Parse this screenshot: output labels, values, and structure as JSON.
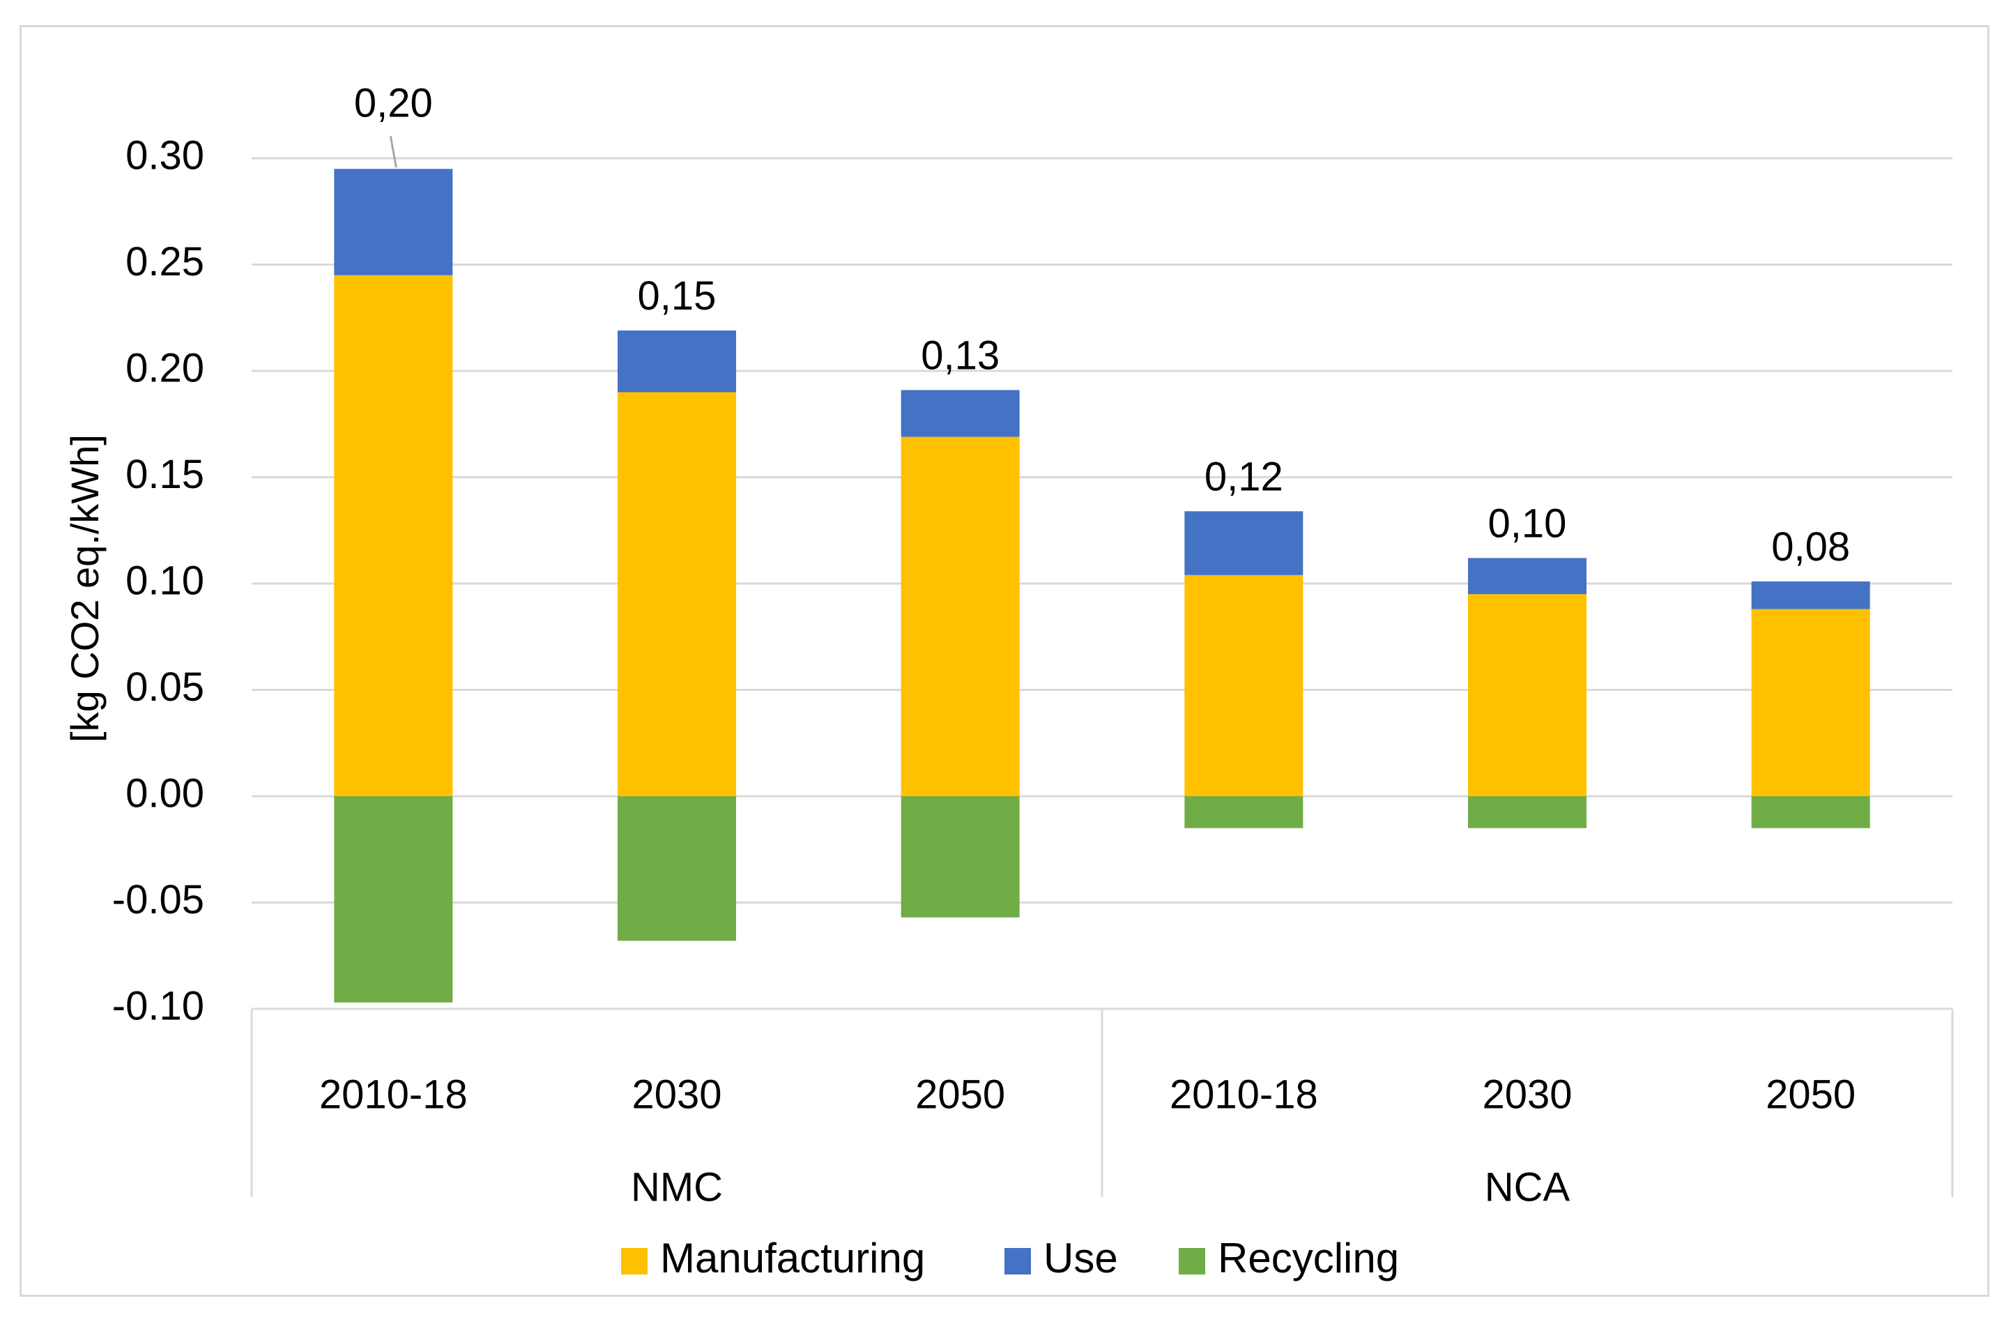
{
  "chart_data": {
    "type": "bar",
    "stacked": true,
    "title": "",
    "xlabel": "",
    "ylabel": "[kg CO2 eq./kWh]",
    "ylim": [
      -0.1,
      0.3
    ],
    "yticks": [
      0.3,
      0.25,
      0.2,
      0.15,
      0.1,
      0.05,
      0.0,
      -0.05,
      -0.1
    ],
    "ytick_labels": [
      "0.30",
      "0.25",
      "0.20",
      "0.15",
      "0.10",
      "0.05",
      "0.00",
      "-0.05",
      "-0.10"
    ],
    "categories": [
      "2010-18",
      "2030",
      "2050",
      "2010-18",
      "2030",
      "2050"
    ],
    "groups": [
      {
        "name": "NMC",
        "categories": [
          "2010-18",
          "2030",
          "2050"
        ]
      },
      {
        "name": "NCA",
        "categories": [
          "2010-18",
          "2030",
          "2050"
        ]
      }
    ],
    "series": [
      {
        "name": "Manufacturing",
        "color": "#ffc000",
        "values": [
          0.245,
          0.19,
          0.169,
          0.104,
          0.095,
          0.088
        ]
      },
      {
        "name": "Use",
        "color": "#4472c4",
        "values": [
          0.05,
          0.029,
          0.022,
          0.03,
          0.017,
          0.013
        ]
      },
      {
        "name": "Recycling",
        "color": "#70ad47",
        "values": [
          -0.097,
          -0.068,
          -0.057,
          -0.015,
          -0.015,
          -0.015
        ]
      }
    ],
    "data_labels": [
      "0,20",
      "0,15",
      "0,13",
      "0,12",
      "0,10",
      "0,08"
    ],
    "legend": {
      "position": "bottom",
      "entries": [
        "Manufacturing",
        "Use",
        "Recycling"
      ]
    },
    "grid": true
  }
}
